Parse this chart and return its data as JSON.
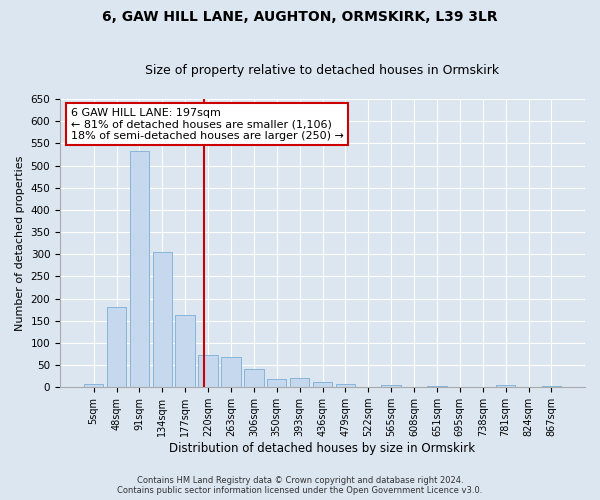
{
  "title": "6, GAW HILL LANE, AUGHTON, ORMSKIRK, L39 3LR",
  "subtitle": "Size of property relative to detached houses in Ormskirk",
  "xlabel": "Distribution of detached houses by size in Ormskirk",
  "ylabel": "Number of detached properties",
  "categories": [
    "5sqm",
    "48sqm",
    "91sqm",
    "134sqm",
    "177sqm",
    "220sqm",
    "263sqm",
    "306sqm",
    "350sqm",
    "393sqm",
    "436sqm",
    "479sqm",
    "522sqm",
    "565sqm",
    "608sqm",
    "651sqm",
    "695sqm",
    "738sqm",
    "781sqm",
    "824sqm",
    "867sqm"
  ],
  "values": [
    8,
    182,
    533,
    305,
    162,
    72,
    68,
    41,
    19,
    20,
    12,
    8,
    0,
    5,
    0,
    2,
    0,
    0,
    4,
    0,
    3
  ],
  "bar_color": "#c5d8ee",
  "bar_edge_color": "#7aadd4",
  "vline_x": 4.82,
  "vline_color": "#cc0000",
  "annotation_text": "6 GAW HILL LANE: 197sqm\n← 81% of detached houses are smaller (1,106)\n18% of semi-detached houses are larger (250) →",
  "annotation_box_color": "#cc0000",
  "ylim": [
    0,
    650
  ],
  "yticks": [
    0,
    50,
    100,
    150,
    200,
    250,
    300,
    350,
    400,
    450,
    500,
    550,
    600,
    650
  ],
  "footer1": "Contains HM Land Registry data © Crown copyright and database right 2024.",
  "footer2": "Contains public sector information licensed under the Open Government Licence v3.0.",
  "background_color": "#dce6f0",
  "plot_bg_color": "#dce6f0",
  "title_fontsize": 10,
  "subtitle_fontsize": 9,
  "figsize": [
    6.0,
    5.0
  ],
  "dpi": 100
}
